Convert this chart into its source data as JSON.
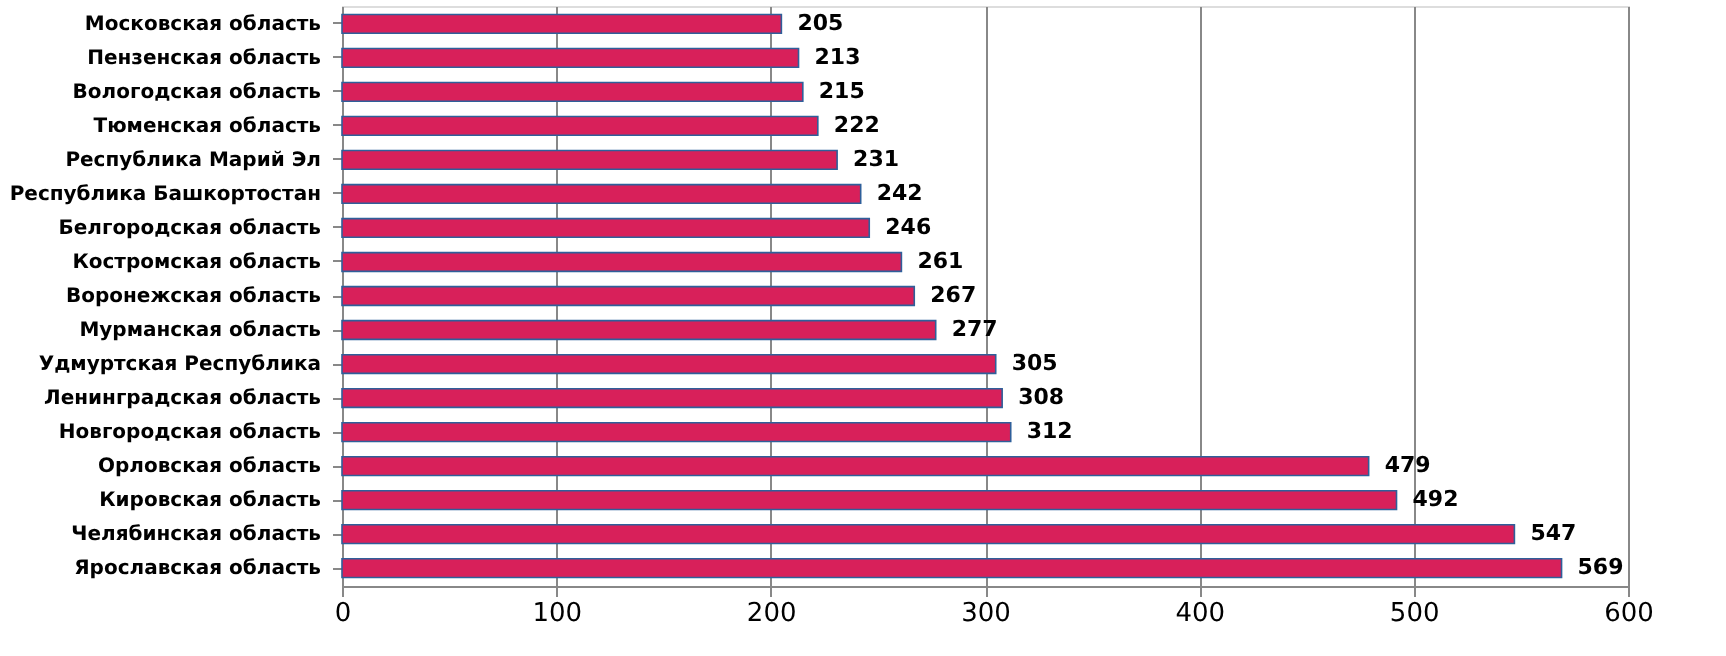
{
  "chart_data": {
    "type": "bar",
    "orientation": "horizontal",
    "categories": [
      "Московская область",
      "Пензенская область",
      "Вологодская область",
      "Тюменская область",
      "Республика Марий Эл",
      "Республика Башкортостан",
      "Белгородская область",
      "Костромская область",
      "Воронежская область",
      "Мурманская область",
      "Удмуртская Республика",
      "Ленинградская область",
      "Новгородская область",
      "Орловская область",
      "Кировская область",
      "Челябинская область",
      "Ярославская область"
    ],
    "values": [
      205,
      213,
      215,
      222,
      231,
      242,
      246,
      261,
      267,
      277,
      305,
      308,
      312,
      479,
      492,
      547,
      569
    ],
    "color": "#d8205a",
    "xlim": [
      0,
      600
    ],
    "xticks": [
      0,
      100,
      200,
      300,
      400,
      500,
      600
    ],
    "grid": "x",
    "data_labels": true
  }
}
